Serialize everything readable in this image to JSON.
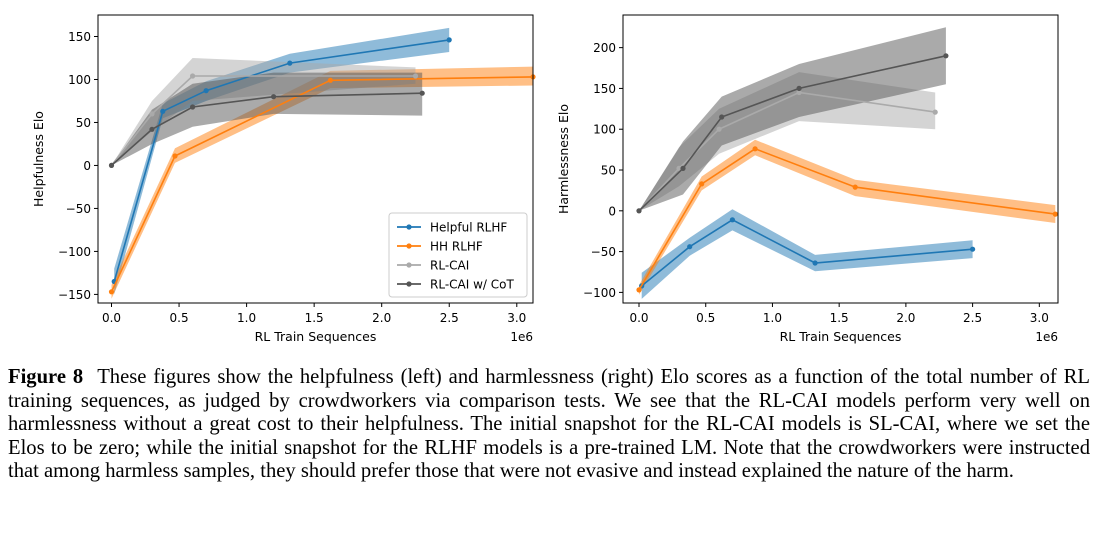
{
  "figure": {
    "label": "Figure 8",
    "caption": "These figures show the helpfulness (left) and harmlessness (right) Elo scores as a function of the total number of RL training sequences, as judged by crowdworkers via comparison tests. We see that the RL-CAI models perform very well on harmlessness without a great cost to their helpfulness. The initial snapshot for the RL-CAI models is SL-CAI, where we set the Elos to be zero; while the initial snapshot for the RLHF models is a pre-trained LM. Note that the crowdworkers were instructed that among harmless samples, they should prefer those that were not evasive and instead explained the nature of the harm."
  },
  "colors": {
    "helpful_rlhf": "#1f77b4",
    "hh_rlhf": "#ff7f0e",
    "rl_cai": "#aaaaaa",
    "rl_cai_cot": "#555555"
  },
  "chart_data": [
    {
      "type": "line",
      "title": "",
      "xlabel": "RL Train Sequences",
      "ylabel": "Helpfulness Elo",
      "x_offset_label": "1e6",
      "xlim": [
        -0.1,
        3.12
      ],
      "ylim": [
        -160,
        175
      ],
      "x_ticks": [
        0,
        0.5,
        1,
        1.5,
        2,
        2.5,
        3
      ],
      "x_tick_labels": [
        "0.0",
        "0.5",
        "1.0",
        "1.5",
        "2.0",
        "2.5",
        "3.0"
      ],
      "y_ticks": [
        -150,
        -100,
        -50,
        0,
        50,
        100,
        150
      ],
      "y_tick_labels": [
        "−150",
        "−100",
        "−50",
        "0",
        "50",
        "100",
        "150"
      ],
      "grid": false,
      "legend_position": "lower right",
      "series": [
        {
          "name": "Helpful RLHF",
          "color_key": "helpful_rlhf",
          "x": [
            0.02,
            0.38,
            0.7,
            1.32,
            2.5
          ],
          "y": [
            -135,
            63,
            87,
            119,
            146
          ],
          "y_low": [
            -150,
            55,
            75,
            108,
            132
          ],
          "y_high": [
            -120,
            72,
            98,
            130,
            160
          ]
        },
        {
          "name": "HH RLHF",
          "color_key": "hh_rlhf",
          "x": [
            0.0,
            0.47,
            1.62,
            3.12
          ],
          "y": [
            -147,
            11,
            99,
            103
          ],
          "y_low": [
            -155,
            3,
            90,
            93
          ],
          "y_high": [
            -139,
            20,
            110,
            115
          ]
        },
        {
          "name": "RL-CAI",
          "color_key": "rl_cai",
          "x": [
            0.0,
            0.3,
            0.6,
            2.25
          ],
          "y": [
            0,
            60,
            104,
            104
          ],
          "y_low": [
            0,
            40,
            75,
            95
          ],
          "y_high": [
            0,
            75,
            125,
            114
          ]
        },
        {
          "name": "RL-CAI w/ CoT",
          "color_key": "rl_cai_cot",
          "x": [
            0.0,
            0.3,
            0.6,
            1.2,
            2.3
          ],
          "y": [
            0,
            42,
            68,
            80,
            84
          ],
          "y_low": [
            0,
            25,
            45,
            60,
            58
          ],
          "y_high": [
            0,
            65,
            95,
            108,
            108
          ]
        }
      ]
    },
    {
      "type": "line",
      "title": "",
      "xlabel": "RL Train Sequences",
      "ylabel": "Harmlessness Elo",
      "x_offset_label": "1e6",
      "xlim": [
        -0.12,
        3.14
      ],
      "ylim": [
        -113,
        240
      ],
      "x_ticks": [
        0,
        0.5,
        1,
        1.5,
        2,
        2.5,
        3
      ],
      "x_tick_labels": [
        "0.0",
        "0.5",
        "1.0",
        "1.5",
        "2.0",
        "2.5",
        "3.0"
      ],
      "y_ticks": [
        -100,
        -50,
        0,
        50,
        100,
        150,
        200
      ],
      "y_tick_labels": [
        "−100",
        "−50",
        "0",
        "50",
        "100",
        "150",
        "200"
      ],
      "grid": false,
      "series": [
        {
          "name": "Helpful RLHF",
          "color_key": "helpful_rlhf",
          "x": [
            0.02,
            0.38,
            0.7,
            1.32,
            2.5
          ],
          "y": [
            -92,
            -44,
            -11,
            -64,
            -47
          ],
          "y_low": [
            -108,
            -55,
            -24,
            -74,
            -58
          ],
          "y_high": [
            -76,
            -33,
            2,
            -54,
            -36
          ]
        },
        {
          "name": "HH RLHF",
          "color_key": "hh_rlhf",
          "x": [
            0.0,
            0.47,
            0.87,
            1.62,
            3.12
          ],
          "y": [
            -97,
            33,
            76,
            29,
            -4
          ],
          "y_low": [
            -103,
            25,
            68,
            18,
            -15
          ],
          "y_high": [
            -91,
            42,
            87,
            38,
            7
          ]
        },
        {
          "name": "RL-CAI",
          "color_key": "rl_cai",
          "x": [
            0.0,
            0.3,
            0.6,
            1.2,
            2.22
          ],
          "y": [
            0,
            52,
            100,
            145,
            121
          ],
          "y_low": [
            0,
            30,
            70,
            110,
            100
          ],
          "y_high": [
            0,
            78,
            125,
            170,
            145
          ]
        },
        {
          "name": "RL-CAI w/ CoT",
          "color_key": "rl_cai_cot",
          "x": [
            0.0,
            0.33,
            0.62,
            1.2,
            2.3
          ],
          "y": [
            0,
            52,
            115,
            150,
            190
          ],
          "y_low": [
            0,
            20,
            80,
            115,
            155
          ],
          "y_high": [
            0,
            85,
            140,
            180,
            225
          ]
        }
      ]
    }
  ]
}
